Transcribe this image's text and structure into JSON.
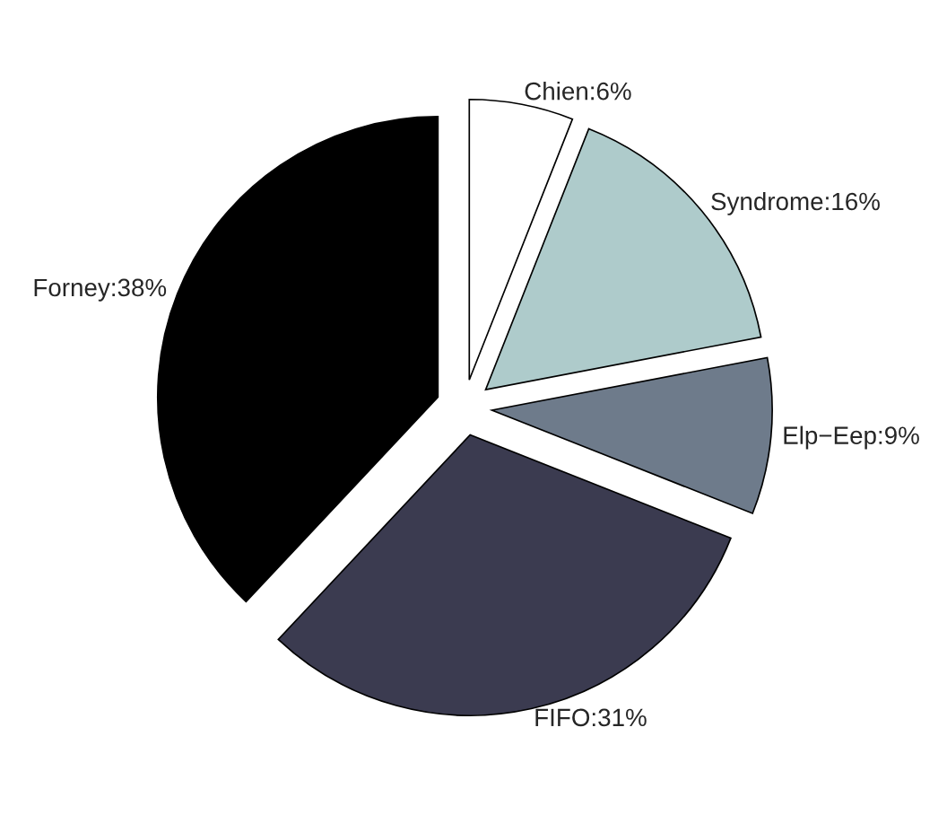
{
  "chart_data": {
    "type": "pie",
    "categories": [
      "Chien:6%",
      "Syndrome:16%",
      "Elp−Eep:9%",
      "FIFO:31%",
      "Forney:38%"
    ],
    "values": [
      6,
      16,
      9,
      31,
      38
    ],
    "colors": [
      "#ffffff",
      "#aecbcb",
      "#6e7b8b",
      "#3b3b50",
      "#000000"
    ]
  }
}
